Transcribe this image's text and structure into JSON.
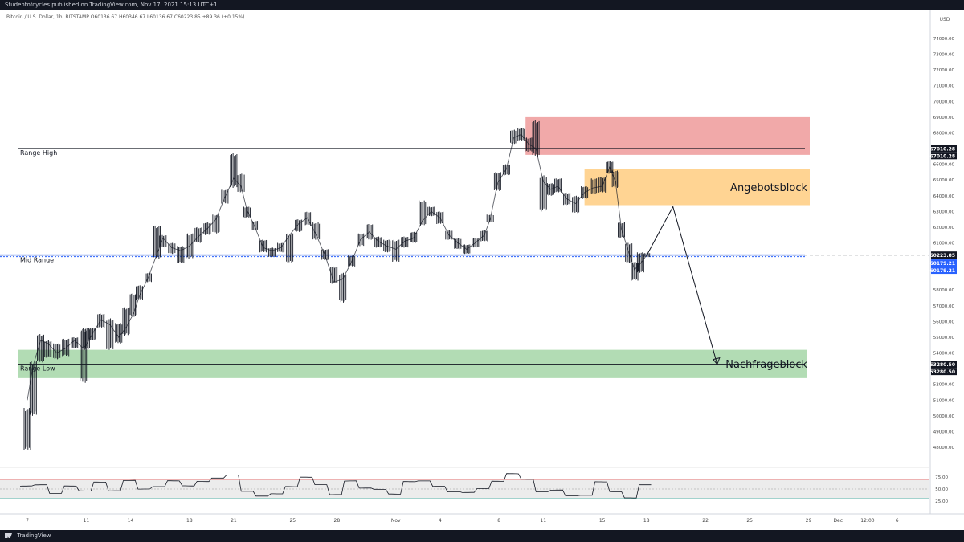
{
  "header": {
    "publisher_line": "Studentofcycles published on TradingView.com, Nov 17, 2021 15:13 UTC+1",
    "symbol_line": "Bitcoin / U.S. Dollar, 1h, BITSTAMP  O60136.67  H60346.67  L60136.67  C60223.85  +89.36 (+0.15%)",
    "currency_top": "USD"
  },
  "footer": {
    "brand": "TradingView"
  },
  "chart_data": {
    "type": "candlestick",
    "instrument": "Bitcoin / U.S. Dollar",
    "timeframe": "1h",
    "exchange": "BITSTAMP",
    "ohlc_last": {
      "open": 60136.67,
      "high": 60346.67,
      "low": 60136.67,
      "close": 60223.85,
      "change": "+89.36 (+0.15%)"
    },
    "price_axis_ticks": [
      74000.0,
      73000.0,
      72000.0,
      71000.0,
      70000.0,
      69000.0,
      68000.0,
      66000.0,
      65000.0,
      64000.0,
      63000.0,
      62000.0,
      61000.0,
      58000.0,
      57000.0,
      56000.0,
      55000.0,
      54000.0,
      53000.0,
      52000.0,
      51000.0,
      50000.0,
      49000.0,
      48000.0
    ],
    "price_axis_tick_labels": [
      "74000.00",
      "73000.00",
      "72000.00",
      "71000.00",
      "70000.00",
      "69000.00",
      "68000.00",
      "66000.00",
      "65000.00",
      "64000.00",
      "63000.00",
      "62000.00",
      "61000.00",
      "58000.00",
      "57000.00",
      "56000.00",
      "55000.00",
      "54000.00",
      "53000.00",
      "52000.00",
      "51000.00",
      "50000.00",
      "49000.00",
      "48000.00"
    ],
    "price_axis_badges": [
      {
        "label": "67010.28",
        "value": 67010.28,
        "color": "#131722"
      },
      {
        "label": "67010.28",
        "value": 67010.28,
        "color": "#131722",
        "stack": 1
      },
      {
        "label": "60223.85",
        "value": 60223.85,
        "color": "#131722"
      },
      {
        "label": "60179.21",
        "value": 60179.21,
        "color": "#2962ff",
        "stack": 1
      },
      {
        "label": "60179.21",
        "value": 60179.21,
        "color": "#2962ff",
        "stack": 2
      },
      {
        "label": "53280.50",
        "value": 53280.5,
        "color": "#131722"
      },
      {
        "label": "53280.50",
        "value": 53280.5,
        "color": "#131722",
        "stack": 1
      }
    ],
    "time_axis_labels": [
      {
        "label": "7",
        "t": 0
      },
      {
        "label": "11",
        "t": 4
      },
      {
        "label": "14",
        "t": 7
      },
      {
        "label": "18",
        "t": 11
      },
      {
        "label": "21",
        "t": 14
      },
      {
        "label": "25",
        "t": 18
      },
      {
        "label": "28",
        "t": 21
      },
      {
        "label": "Nov",
        "t": 25
      },
      {
        "label": "4",
        "t": 28
      },
      {
        "label": "8",
        "t": 32
      },
      {
        "label": "11",
        "t": 35
      },
      {
        "label": "15",
        "t": 39
      },
      {
        "label": "18",
        "t": 42
      },
      {
        "label": "22",
        "t": 46
      },
      {
        "label": "25",
        "t": 49
      },
      {
        "label": "29",
        "t": 53
      },
      {
        "label": "Dec",
        "t": 55
      },
      {
        "label": "12:00",
        "t": 57
      },
      {
        "label": "6",
        "t": 59
      }
    ],
    "price_path": [
      [
        0.0,
        51000
      ],
      [
        0.4,
        53200
      ],
      [
        0.9,
        54800
      ],
      [
        1.4,
        54600
      ],
      [
        2.0,
        54000
      ],
      [
        2.6,
        54300
      ],
      [
        3.2,
        54800
      ],
      [
        3.8,
        54300
      ],
      [
        4.0,
        54500
      ],
      [
        4.4,
        55200
      ],
      [
        5.0,
        56100
      ],
      [
        5.6,
        55800
      ],
      [
        6.2,
        55000
      ],
      [
        6.7,
        55600
      ],
      [
        7.2,
        56500
      ],
      [
        7.6,
        57600
      ],
      [
        8.2,
        58800
      ],
      [
        8.8,
        60300
      ],
      [
        9.2,
        61300
      ],
      [
        9.8,
        60700
      ],
      [
        10.4,
        60500
      ],
      [
        11.0,
        60800
      ],
      [
        11.6,
        61400
      ],
      [
        12.2,
        61900
      ],
      [
        12.8,
        62500
      ],
      [
        13.4,
        63900
      ],
      [
        14.0,
        65100
      ],
      [
        14.5,
        64600
      ],
      [
        14.9,
        63100
      ],
      [
        15.4,
        62100
      ],
      [
        16.0,
        60700
      ],
      [
        16.6,
        60500
      ],
      [
        17.2,
        60700
      ],
      [
        17.8,
        61500
      ],
      [
        18.4,
        62200
      ],
      [
        19.0,
        62600
      ],
      [
        19.6,
        61500
      ],
      [
        20.2,
        60200
      ],
      [
        20.8,
        58500
      ],
      [
        21.4,
        58700
      ],
      [
        22.0,
        59800
      ],
      [
        22.6,
        61200
      ],
      [
        23.2,
        61700
      ],
      [
        23.8,
        61100
      ],
      [
        24.4,
        60800
      ],
      [
        25.0,
        60600
      ],
      [
        25.6,
        61100
      ],
      [
        26.2,
        61300
      ],
      [
        26.8,
        62400
      ],
      [
        27.4,
        63000
      ],
      [
        28.0,
        62600
      ],
      [
        28.6,
        61500
      ],
      [
        29.2,
        61000
      ],
      [
        29.8,
        60600
      ],
      [
        30.4,
        61000
      ],
      [
        31.0,
        61500
      ],
      [
        31.4,
        62500
      ],
      [
        31.9,
        64800
      ],
      [
        32.5,
        65700
      ],
      [
        33.0,
        67700
      ],
      [
        33.5,
        67900
      ],
      [
        34.0,
        67300
      ],
      [
        34.5,
        67000
      ],
      [
        35.0,
        64900
      ],
      [
        35.5,
        64400
      ],
      [
        36.0,
        64600
      ],
      [
        36.6,
        63800
      ],
      [
        37.2,
        63500
      ],
      [
        37.8,
        64200
      ],
      [
        38.4,
        64500
      ],
      [
        39.0,
        64600
      ],
      [
        39.5,
        65800
      ],
      [
        39.9,
        64900
      ],
      [
        40.3,
        61900
      ],
      [
        40.8,
        60400
      ],
      [
        41.2,
        59300
      ],
      [
        41.6,
        59700
      ],
      [
        42.0,
        60200
      ]
    ],
    "candle_band_pct": 0.5,
    "bars": [
      {
        "t": 0.0,
        "low": 47800,
        "high": 50500
      },
      {
        "t": 0.4,
        "low": 50000,
        "high": 53500
      },
      {
        "t": 0.9,
        "low": 53400,
        "high": 55200
      },
      {
        "t": 1.4,
        "low": 53700,
        "high": 54800
      },
      {
        "t": 2.0,
        "low": 53600,
        "high": 54600
      },
      {
        "t": 2.6,
        "low": 53800,
        "high": 54900
      },
      {
        "t": 3.2,
        "low": 54300,
        "high": 55000
      },
      {
        "t": 3.8,
        "low": 52100,
        "high": 55600
      },
      {
        "t": 4.0,
        "low": 54200,
        "high": 55600
      },
      {
        "t": 4.4,
        "low": 54800,
        "high": 55600
      },
      {
        "t": 5.0,
        "low": 55600,
        "high": 56500
      },
      {
        "t": 5.6,
        "low": 54200,
        "high": 56200
      },
      {
        "t": 6.2,
        "low": 54600,
        "high": 55900
      },
      {
        "t": 6.7,
        "low": 55100,
        "high": 56900
      },
      {
        "t": 7.2,
        "low": 56300,
        "high": 57800
      },
      {
        "t": 7.6,
        "low": 57400,
        "high": 58300
      },
      {
        "t": 8.2,
        "low": 58500,
        "high": 59100
      },
      {
        "t": 8.8,
        "low": 60000,
        "high": 62100
      },
      {
        "t": 9.2,
        "low": 60700,
        "high": 61500
      },
      {
        "t": 9.8,
        "low": 60300,
        "high": 61000
      },
      {
        "t": 10.4,
        "low": 59700,
        "high": 60800
      },
      {
        "t": 11.0,
        "low": 60000,
        "high": 61600
      },
      {
        "t": 11.6,
        "low": 61000,
        "high": 62000
      },
      {
        "t": 12.2,
        "low": 61500,
        "high": 62300
      },
      {
        "t": 12.8,
        "low": 61600,
        "high": 62800
      },
      {
        "t": 13.4,
        "low": 63500,
        "high": 64400
      },
      {
        "t": 14.0,
        "low": 64500,
        "high": 66700
      },
      {
        "t": 14.5,
        "low": 64200,
        "high": 65400
      },
      {
        "t": 14.9,
        "low": 62600,
        "high": 63300
      },
      {
        "t": 15.4,
        "low": 61800,
        "high": 62400
      },
      {
        "t": 16.0,
        "low": 60400,
        "high": 61200
      },
      {
        "t": 16.6,
        "low": 60100,
        "high": 60700
      },
      {
        "t": 17.2,
        "low": 60400,
        "high": 61000
      },
      {
        "t": 17.8,
        "low": 59700,
        "high": 61600
      },
      {
        "t": 18.4,
        "low": 61700,
        "high": 62500
      },
      {
        "t": 19.0,
        "low": 62100,
        "high": 63000
      },
      {
        "t": 19.6,
        "low": 61200,
        "high": 62300
      },
      {
        "t": 20.2,
        "low": 59900,
        "high": 60600
      },
      {
        "t": 20.8,
        "low": 58400,
        "high": 59500
      },
      {
        "t": 21.4,
        "low": 57200,
        "high": 59100
      },
      {
        "t": 22.0,
        "low": 59500,
        "high": 60200
      },
      {
        "t": 22.6,
        "low": 60800,
        "high": 61600
      },
      {
        "t": 23.2,
        "low": 61200,
        "high": 62200
      },
      {
        "t": 23.8,
        "low": 60700,
        "high": 61400
      },
      {
        "t": 24.4,
        "low": 60400,
        "high": 61200
      },
      {
        "t": 25.0,
        "low": 59800,
        "high": 61200
      },
      {
        "t": 25.6,
        "low": 60700,
        "high": 61400
      },
      {
        "t": 26.2,
        "low": 61000,
        "high": 61700
      },
      {
        "t": 26.8,
        "low": 62100,
        "high": 63700
      },
      {
        "t": 27.4,
        "low": 62700,
        "high": 63300
      },
      {
        "t": 28.0,
        "low": 62200,
        "high": 63000
      },
      {
        "t": 28.6,
        "low": 61200,
        "high": 61800
      },
      {
        "t": 29.2,
        "low": 60600,
        "high": 61300
      },
      {
        "t": 29.8,
        "low": 60300,
        "high": 60900
      },
      {
        "t": 30.4,
        "low": 60700,
        "high": 61300
      },
      {
        "t": 31.0,
        "low": 61100,
        "high": 61800
      },
      {
        "t": 31.4,
        "low": 62300,
        "high": 62800
      },
      {
        "t": 31.9,
        "low": 64300,
        "high": 65500
      },
      {
        "t": 32.5,
        "low": 65300,
        "high": 66000
      },
      {
        "t": 33.0,
        "low": 67300,
        "high": 68200
      },
      {
        "t": 33.5,
        "low": 67500,
        "high": 68300
      },
      {
        "t": 34.0,
        "low": 66800,
        "high": 67700
      },
      {
        "t": 34.5,
        "low": 66500,
        "high": 68800
      },
      {
        "t": 35.0,
        "low": 63000,
        "high": 65300
      },
      {
        "t": 35.5,
        "low": 64000,
        "high": 64800
      },
      {
        "t": 36.0,
        "low": 64200,
        "high": 65100
      },
      {
        "t": 36.6,
        "low": 63400,
        "high": 64200
      },
      {
        "t": 37.2,
        "low": 62900,
        "high": 64000
      },
      {
        "t": 37.8,
        "low": 63800,
        "high": 64600
      },
      {
        "t": 38.4,
        "low": 64100,
        "high": 65100
      },
      {
        "t": 39.0,
        "low": 64200,
        "high": 65200
      },
      {
        "t": 39.5,
        "low": 65400,
        "high": 66200
      },
      {
        "t": 39.9,
        "low": 64500,
        "high": 65600
      },
      {
        "t": 40.3,
        "low": 61300,
        "high": 62300
      },
      {
        "t": 40.8,
        "low": 59700,
        "high": 61000
      },
      {
        "t": 41.2,
        "low": 58600,
        "high": 59800
      },
      {
        "t": 41.6,
        "low": 59100,
        "high": 60400
      },
      {
        "t": 42.0,
        "low": 60100,
        "high": 60350
      }
    ],
    "levels": [
      {
        "label": "Range High",
        "price": 67010.28,
        "color": "#131722",
        "style": "solid"
      },
      {
        "label": "Mid Range",
        "price": 60179.21,
        "color": "#2962ff",
        "style": "double"
      },
      {
        "label": "Range Low",
        "price": 53280.5,
        "color": "#131722",
        "style": "solid"
      },
      {
        "label": "",
        "price": 60223.85,
        "color": "#131722",
        "style": "dashed"
      }
    ],
    "zones": [
      {
        "label": "Angebotsblock",
        "t_start": 37.8,
        "t_end": 55,
        "price_low": 63400,
        "price_high": 65700,
        "color": "#ffcc80"
      },
      {
        "label": "Nachfrageblock",
        "t_start": 0,
        "t_end": 55,
        "price_low": 52400,
        "price_high": 54200,
        "color": "#a5d6a7"
      },
      {
        "label": "",
        "t_start": 33.8,
        "t_end": 36.2,
        "price_low": 66600,
        "price_high": 69000,
        "color": "#ef9a9a"
      }
    ],
    "projection": [
      [
        42.0,
        60179.21
      ],
      [
        43.8,
        63300
      ],
      [
        46.8,
        53280.5
      ]
    ],
    "rsi": {
      "y_ticks": [
        75.0,
        50.0,
        25.0
      ],
      "y_tick_labels": [
        "75.00",
        "50.00",
        "25.00"
      ],
      "upper_band": 70,
      "lower_band": 30,
      "points": [
        [
          0,
          56
        ],
        [
          1,
          64
        ],
        [
          2,
          48
        ],
        [
          3,
          60
        ],
        [
          4,
          44
        ],
        [
          5,
          58
        ],
        [
          6,
          40
        ],
        [
          7,
          66
        ],
        [
          8,
          54
        ],
        [
          9,
          62
        ],
        [
          10,
          72
        ],
        [
          11,
          56
        ],
        [
          12,
          60
        ],
        [
          13,
          66
        ],
        [
          14,
          76
        ],
        [
          15,
          48
        ],
        [
          16,
          42
        ],
        [
          17,
          46
        ],
        [
          18,
          56
        ],
        [
          19,
          70
        ],
        [
          20,
          52
        ],
        [
          21,
          34
        ],
        [
          22,
          68
        ],
        [
          23,
          58
        ],
        [
          24,
          56
        ],
        [
          25,
          42
        ],
        [
          26,
          62
        ],
        [
          27,
          60
        ],
        [
          28,
          50
        ],
        [
          29,
          44
        ],
        [
          30,
          48
        ],
        [
          31,
          58
        ],
        [
          32,
          70
        ],
        [
          33,
          80
        ],
        [
          34,
          64
        ],
        [
          35,
          38
        ],
        [
          36,
          46
        ],
        [
          37,
          40
        ],
        [
          38,
          44
        ],
        [
          39,
          70
        ],
        [
          40,
          44
        ],
        [
          41,
          26
        ],
        [
          42,
          52
        ]
      ]
    },
    "colors": {
      "up": "#26a69a",
      "down": "#ef5350",
      "candle": "#131722",
      "rsi_line": "#131722",
      "rsi_band": "#e0e0e0"
    }
  }
}
